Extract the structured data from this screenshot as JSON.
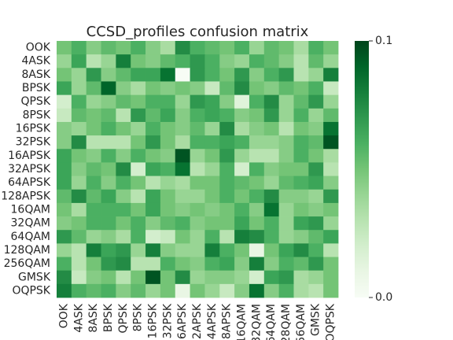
{
  "chart_data": {
    "type": "heatmap",
    "title": "CCSD_profiles confusion matrix",
    "xlabel": "",
    "ylabel": "",
    "row_labels": [
      "OOK",
      "4ASK",
      "8ASK",
      "BPSK",
      "QPSK",
      "8PSK",
      "16PSK",
      "32PSK",
      "16APSK",
      "32APSK",
      "64APSK",
      "128APSK",
      "16QAM",
      "32QAM",
      "64QAM",
      "128QAM",
      "256QAM",
      "GMSK",
      "OQPSK"
    ],
    "col_tick_labels": [
      "OOK",
      "4ASK",
      "8ASK",
      "BPSK",
      "QPSK",
      "8PSK",
      "16PSK",
      "32PSK",
      "16APSK",
      "32APSK",
      "64APSK",
      "128APSK",
      "16QAM",
      "32QAM",
      "64QAM",
      "128QAM",
      "256QAM",
      "GMSK",
      "OQPSK"
    ],
    "colorbar": {
      "min": 0.0,
      "max": 0.1,
      "min_label": "0.0",
      "max_label": "0.1",
      "colormap": "Greens",
      "low_color": "#f7fcf5",
      "high_color": "#00441b"
    },
    "values": [
      [
        0.05,
        0.06,
        0.045,
        0.055,
        0.05,
        0.06,
        0.045,
        0.035,
        0.075,
        0.06,
        0.055,
        0.05,
        0.06,
        0.04,
        0.055,
        0.05,
        0.035,
        0.06,
        0.05
      ],
      [
        0.04,
        0.065,
        0.03,
        0.04,
        0.08,
        0.05,
        0.045,
        0.055,
        0.06,
        0.07,
        0.06,
        0.045,
        0.04,
        0.06,
        0.055,
        0.045,
        0.03,
        0.055,
        0.04
      ],
      [
        0.05,
        0.04,
        0.07,
        0.045,
        0.055,
        0.065,
        0.065,
        0.085,
        0.0,
        0.07,
        0.06,
        0.05,
        0.07,
        0.045,
        0.06,
        0.07,
        0.03,
        0.04,
        0.08
      ],
      [
        0.065,
        0.04,
        0.055,
        0.09,
        0.045,
        0.035,
        0.05,
        0.045,
        0.05,
        0.045,
        0.025,
        0.055,
        0.075,
        0.05,
        0.045,
        0.055,
        0.05,
        0.06,
        0.025
      ],
      [
        0.02,
        0.06,
        0.04,
        0.045,
        0.055,
        0.05,
        0.06,
        0.06,
        0.04,
        0.07,
        0.065,
        0.045,
        0.015,
        0.06,
        0.075,
        0.04,
        0.055,
        0.07,
        0.04
      ],
      [
        0.025,
        0.055,
        0.05,
        0.055,
        0.03,
        0.07,
        0.055,
        0.065,
        0.045,
        0.06,
        0.065,
        0.06,
        0.045,
        0.05,
        0.07,
        0.04,
        0.06,
        0.04,
        0.055
      ],
      [
        0.045,
        0.04,
        0.05,
        0.06,
        0.05,
        0.04,
        0.06,
        0.05,
        0.045,
        0.055,
        0.04,
        0.075,
        0.035,
        0.045,
        0.05,
        0.03,
        0.05,
        0.045,
        0.085
      ],
      [
        0.045,
        0.075,
        0.03,
        0.03,
        0.03,
        0.05,
        0.07,
        0.05,
        0.035,
        0.06,
        0.06,
        0.065,
        0.06,
        0.04,
        0.04,
        0.045,
        0.06,
        0.055,
        0.095
      ],
      [
        0.065,
        0.05,
        0.045,
        0.06,
        0.045,
        0.06,
        0.05,
        0.045,
        0.095,
        0.04,
        0.05,
        0.07,
        0.04,
        0.03,
        0.03,
        0.045,
        0.06,
        0.05,
        0.035
      ],
      [
        0.065,
        0.045,
        0.055,
        0.05,
        0.075,
        0.02,
        0.065,
        0.06,
        0.085,
        0.03,
        0.04,
        0.06,
        0.02,
        0.06,
        0.045,
        0.05,
        0.05,
        0.07,
        0.03
      ],
      [
        0.065,
        0.04,
        0.06,
        0.045,
        0.06,
        0.05,
        0.03,
        0.04,
        0.035,
        0.05,
        0.05,
        0.06,
        0.055,
        0.05,
        0.04,
        0.055,
        0.06,
        0.065,
        0.045
      ],
      [
        0.055,
        0.075,
        0.055,
        0.065,
        0.045,
        0.03,
        0.065,
        0.05,
        0.04,
        0.04,
        0.05,
        0.06,
        0.05,
        0.06,
        0.075,
        0.045,
        0.045,
        0.04,
        0.07
      ],
      [
        0.05,
        0.035,
        0.06,
        0.06,
        0.06,
        0.05,
        0.065,
        0.05,
        0.045,
        0.05,
        0.045,
        0.05,
        0.06,
        0.045,
        0.085,
        0.04,
        0.05,
        0.045,
        0.05
      ],
      [
        0.045,
        0.05,
        0.06,
        0.06,
        0.05,
        0.06,
        0.045,
        0.055,
        0.06,
        0.045,
        0.05,
        0.05,
        0.065,
        0.05,
        0.06,
        0.04,
        0.065,
        0.07,
        0.04
      ],
      [
        0.07,
        0.055,
        0.04,
        0.045,
        0.035,
        0.06,
        0.02,
        0.025,
        0.05,
        0.04,
        0.06,
        0.03,
        0.08,
        0.075,
        0.06,
        0.04,
        0.045,
        0.055,
        0.065
      ],
      [
        0.04,
        0.03,
        0.08,
        0.065,
        0.07,
        0.04,
        0.08,
        0.045,
        0.04,
        0.04,
        0.08,
        0.06,
        0.05,
        0.01,
        0.05,
        0.065,
        0.075,
        0.06,
        0.03
      ],
      [
        0.06,
        0.03,
        0.05,
        0.07,
        0.075,
        0.03,
        0.03,
        0.06,
        0.05,
        0.045,
        0.06,
        0.065,
        0.045,
        0.08,
        0.045,
        0.06,
        0.055,
        0.07,
        0.05
      ],
      [
        0.075,
        0.025,
        0.045,
        0.05,
        0.03,
        0.05,
        0.095,
        0.05,
        0.075,
        0.04,
        0.045,
        0.045,
        0.04,
        0.02,
        0.065,
        0.07,
        0.035,
        0.04,
        0.05
      ],
      [
        0.08,
        0.06,
        0.055,
        0.06,
        0.045,
        0.055,
        0.04,
        0.05,
        0.01,
        0.05,
        0.04,
        0.025,
        0.045,
        0.085,
        0.045,
        0.06,
        0.035,
        0.03,
        0.05
      ]
    ]
  }
}
